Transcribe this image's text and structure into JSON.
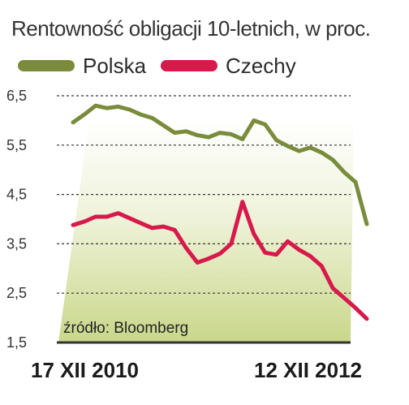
{
  "colors": {
    "polska": "#7a8c3c",
    "czechy": "#d7194b",
    "grid": "#333333"
  },
  "legend": [
    {
      "label": "Polska",
      "color": "#7a8c3c"
    },
    {
      "label": "Czechy",
      "color": "#d7194b"
    }
  ],
  "chart_data": {
    "type": "line",
    "title": "Rentowność obligacji 10-letnich, w proc.",
    "source": "źródło: Bloomberg",
    "x_tick_labels": [
      "17 XII 2010",
      "12 XII 2012"
    ],
    "y_ticks": [
      {
        "value": 6.5,
        "label": "6,5"
      },
      {
        "value": 5.5,
        "label": "5,5"
      },
      {
        "value": 4.5,
        "label": "4,5"
      },
      {
        "value": 3.5,
        "label": "3,5"
      },
      {
        "value": 2.5,
        "label": "2,5"
      },
      {
        "value": 1.5,
        "label": "1,5"
      }
    ],
    "ylim": [
      1.5,
      6.5
    ],
    "x": [
      0,
      4,
      8,
      12,
      16,
      20,
      24,
      28,
      32,
      36,
      40,
      44,
      48,
      52,
      56,
      60,
      64,
      68,
      72,
      76,
      80,
      84,
      88,
      92,
      96,
      100,
      104
    ],
    "series": [
      {
        "name": "Polska",
        "color": "#7a8c3c",
        "values": [
          5.96,
          6.12,
          6.3,
          6.25,
          6.28,
          6.22,
          6.12,
          6.05,
          5.9,
          5.75,
          5.78,
          5.7,
          5.66,
          5.75,
          5.72,
          5.62,
          6.0,
          5.92,
          5.6,
          5.48,
          5.38,
          5.45,
          5.35,
          5.2,
          4.95,
          4.75,
          3.9
        ]
      },
      {
        "name": "Czechy",
        "color": "#d7194b",
        "values": [
          3.88,
          3.95,
          4.05,
          4.05,
          4.12,
          4.02,
          3.92,
          3.82,
          3.85,
          3.78,
          3.42,
          3.12,
          3.2,
          3.3,
          3.5,
          4.35,
          3.7,
          3.32,
          3.28,
          3.55,
          3.38,
          3.25,
          3.05,
          2.6,
          2.4,
          2.2,
          1.98
        ]
      }
    ]
  }
}
